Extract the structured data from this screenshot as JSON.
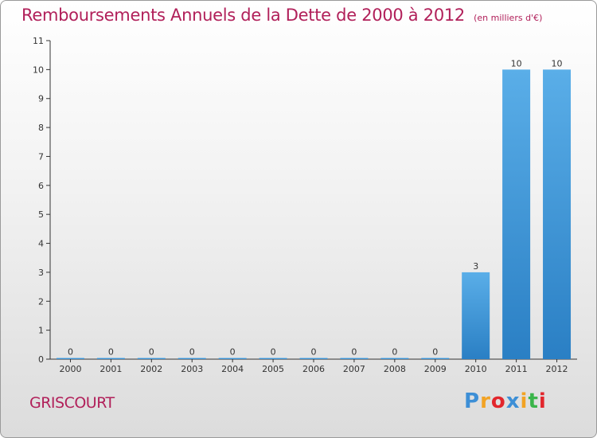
{
  "header": {
    "title": "Remboursements Annuels de la Dette de 2000 à 2012",
    "subtitle": "(en milliers d'€)"
  },
  "footer": {
    "commune": "GRISCOURT",
    "logo": "Proxiti"
  },
  "colors": {
    "title": "#b1205a",
    "bar_top": "#5aaee8",
    "bar_bottom": "#2a7fc4",
    "axis": "#333333"
  },
  "chart_data": {
    "type": "bar",
    "title": "Remboursements Annuels de la Dette de 2000 à 2012",
    "subtitle": "(en milliers d'€)",
    "categories": [
      "2000",
      "2001",
      "2002",
      "2003",
      "2004",
      "2005",
      "2006",
      "2007",
      "2008",
      "2009",
      "2010",
      "2011",
      "2012"
    ],
    "values": [
      0,
      0,
      0,
      0,
      0,
      0,
      0,
      0,
      0,
      0,
      3,
      10,
      10
    ],
    "data_labels": [
      "0",
      "0",
      "0",
      "0",
      "0",
      "0",
      "0",
      "0",
      "0",
      "0",
      "3",
      "10",
      "10"
    ],
    "y_ticks": [
      0,
      1,
      2,
      3,
      4,
      5,
      6,
      7,
      8,
      9,
      10,
      11
    ],
    "ylim": [
      0,
      11
    ],
    "xlabel": "",
    "ylabel": "",
    "grid": false,
    "legend": "none"
  }
}
